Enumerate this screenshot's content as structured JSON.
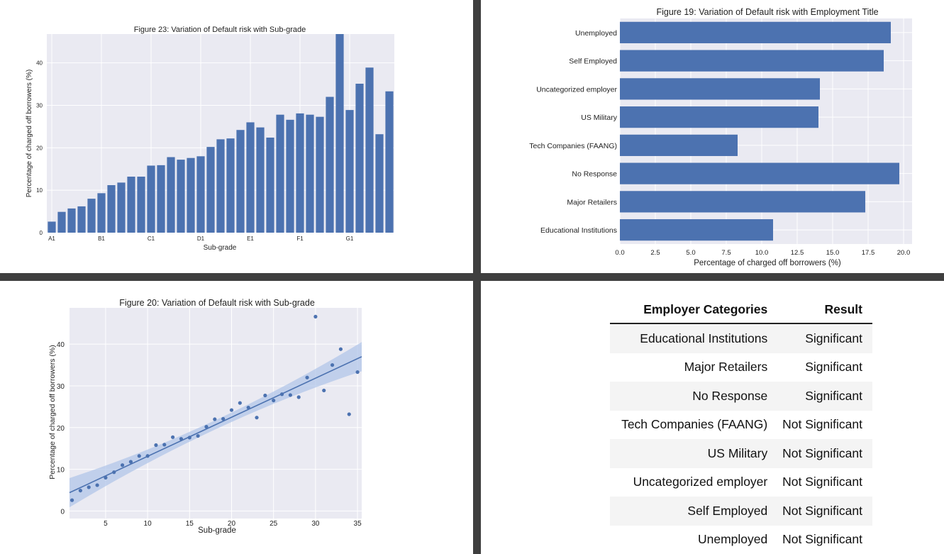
{
  "colors": {
    "bar": "#4c72b0",
    "plot_bg": "#eaeaf2",
    "grid": "#ffffff",
    "band": "#aec3e8"
  },
  "chart_data": [
    {
      "type": "bar",
      "title": "Figure 23: Variation of Default risk with Sub-grade",
      "xlabel": "Sub-grade",
      "ylabel": "Percentage of charged off borrowers (%)",
      "tick_labels": [
        "A1",
        "B1",
        "C1",
        "D1",
        "E1",
        "F1",
        "G1"
      ],
      "tick_indices": [
        0,
        5,
        10,
        15,
        20,
        25,
        30
      ],
      "yticks": [
        0,
        10,
        20,
        30,
        40
      ],
      "ylim": [
        0,
        46.8
      ],
      "values": [
        2.6,
        4.9,
        5.7,
        6.2,
        8.0,
        9.3,
        11.2,
        11.8,
        13.2,
        13.2,
        15.8,
        15.9,
        17.8,
        17.2,
        17.6,
        18.0,
        20.2,
        22.0,
        22.2,
        24.2,
        26.0,
        24.8,
        22.4,
        27.8,
        26.6,
        28.1,
        27.8,
        27.3,
        32.0,
        46.8,
        28.9,
        35.1,
        38.9,
        23.2,
        33.3
      ],
      "grid": true
    },
    {
      "type": "bar",
      "orientation": "horizontal",
      "title": "Figure 19: Variation of Default risk with Employment Title",
      "xlabel": "Percentage of charged off borrowers (%)",
      "ylabel": "",
      "categories": [
        "Unemployed",
        "Self Employed",
        "Uncategorized employer",
        "US Military",
        "Tech Companies (FAANG)",
        "No Response",
        "Major Retailers",
        "Educational Institutions"
      ],
      "values": [
        19.1,
        18.6,
        14.1,
        14.0,
        8.3,
        19.7,
        17.3,
        10.8
      ],
      "xticks": [
        "0.0",
        "2.5",
        "5.0",
        "7.5",
        "10.0",
        "12.5",
        "15.0",
        "17.5",
        "20.0"
      ],
      "xlim": [
        0,
        20.6
      ],
      "grid": true
    },
    {
      "type": "scatter",
      "title": "Figure 20: Variation of Default risk with Sub-grade",
      "xlabel": "Sub-grade",
      "ylabel": "Percentage of charged off borrowers (%)",
      "x": [
        1,
        2,
        3,
        4,
        5,
        6,
        7,
        8,
        9,
        10,
        11,
        12,
        13,
        14,
        15,
        16,
        17,
        18,
        19,
        20,
        21,
        22,
        23,
        24,
        25,
        26,
        27,
        28,
        29,
        30,
        31,
        32,
        33,
        34,
        35
      ],
      "y": [
        2.6,
        4.9,
        5.7,
        6.2,
        8.0,
        9.3,
        11.0,
        11.8,
        13.2,
        13.2,
        15.8,
        15.9,
        17.7,
        17.3,
        17.6,
        18.0,
        20.2,
        22.0,
        22.1,
        24.2,
        25.9,
        24.8,
        22.4,
        27.7,
        26.5,
        28.0,
        27.8,
        27.3,
        32.0,
        46.6,
        28.9,
        35.0,
        38.8,
        23.2,
        33.3
      ],
      "regression": {
        "x": [
          0.7,
          35.5
        ],
        "y": [
          4.4,
          37.0
        ]
      },
      "xticks": [
        5,
        10,
        15,
        20,
        25,
        30,
        35
      ],
      "yticks": [
        0,
        10,
        20,
        30,
        40
      ],
      "xlim": [
        0.7,
        35.5
      ],
      "ylim": [
        -1.8,
        48.7
      ],
      "grid": true
    },
    {
      "type": "table",
      "columns": [
        "Employer Categories",
        "Result"
      ],
      "rows": [
        [
          "Educational Institutions",
          "Significant"
        ],
        [
          "Major Retailers",
          "Significant"
        ],
        [
          "No Response",
          "Significant"
        ],
        [
          "Tech Companies (FAANG)",
          "Not Significant"
        ],
        [
          "US Military",
          "Not Significant"
        ],
        [
          "Uncategorized employer",
          "Not Significant"
        ],
        [
          "Self Employed",
          "Not Significant"
        ],
        [
          "Unemployed",
          "Not Significant"
        ]
      ]
    }
  ]
}
